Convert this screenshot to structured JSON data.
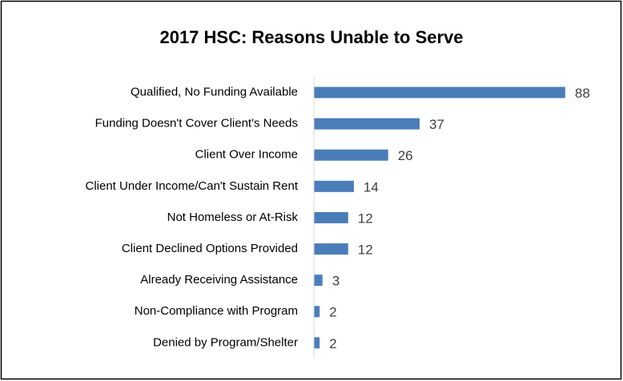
{
  "chart_data": {
    "type": "bar",
    "orientation": "horizontal",
    "title": "2017 HSC:  Reasons Unable to Serve",
    "categories": [
      "Qualified, No Funding Available",
      "Funding Doesn't Cover Client's Needs",
      "Client Over Income",
      "Client Under Income/Can't Sustain Rent",
      "Not Homeless or At-Risk",
      "Client Declined Options Provided",
      "Already Receiving Assistance",
      "Non-Compliance with Program",
      "Denied by Program/Shelter"
    ],
    "values": [
      88,
      37,
      26,
      14,
      12,
      12,
      3,
      2,
      2
    ],
    "color": "#4a7ebb",
    "xlim": [
      0,
      90
    ]
  }
}
